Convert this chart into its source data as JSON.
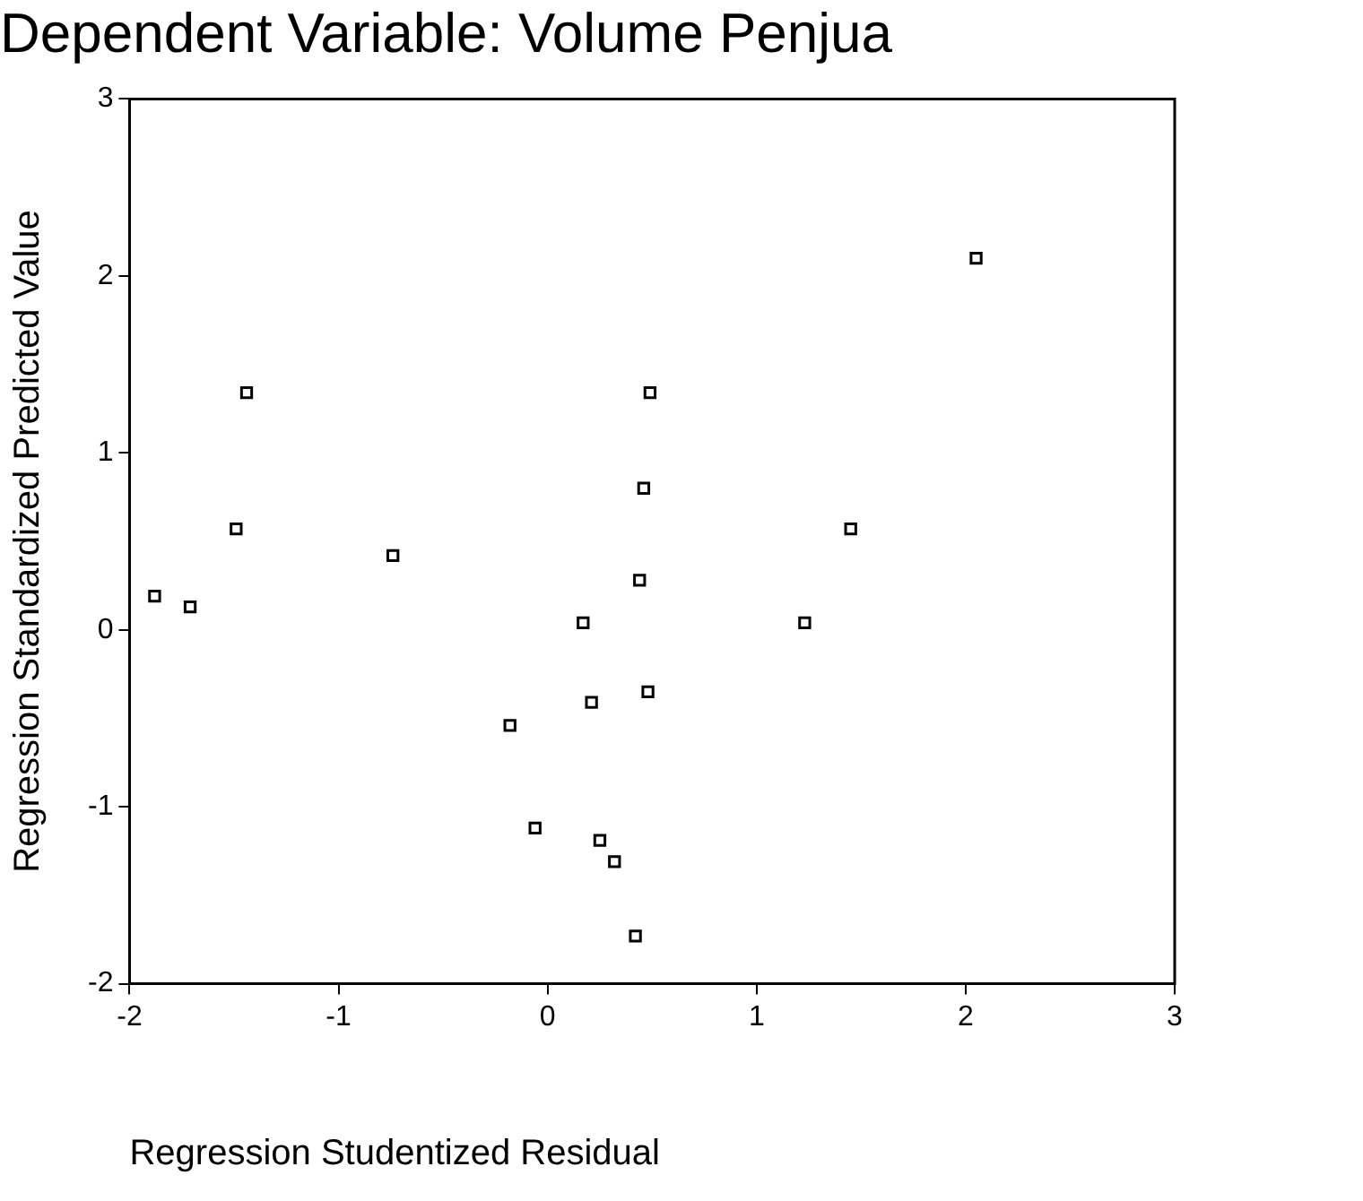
{
  "chart_data": {
    "type": "scatter",
    "title": "Dependent Variable: Volume Penjua",
    "xlabel": "Regression Studentized Residual",
    "ylabel": "Regression Standardized Predicted Value",
    "x": [
      -1.88,
      -1.71,
      0.44,
      0.17,
      1.23,
      0.48,
      0.21,
      -0.18,
      -0.06,
      0.25,
      0.32,
      0.42,
      -1.44,
      0.49,
      2.05,
      0.46,
      -1.49,
      1.45,
      -0.74
    ],
    "series": [
      {
        "color": "#000000",
        "values": [
          0.19,
          0.13,
          0.28,
          0.04,
          0.04,
          -0.35,
          -0.41,
          -0.54,
          -1.12,
          -1.19,
          -1.31,
          -1.73,
          1.34,
          1.34,
          2.1,
          0.8,
          0.57,
          0.57,
          0.42
        ]
      }
    ],
    "xlim": [
      -2,
      3
    ],
    "xticks": [
      -2,
      -1,
      0,
      1,
      2,
      3
    ],
    "ylim": [
      -2,
      3
    ],
    "yticks": [
      -2,
      -1,
      0,
      1,
      2,
      3
    ],
    "grid": false,
    "legend": false,
    "marker": "square"
  }
}
